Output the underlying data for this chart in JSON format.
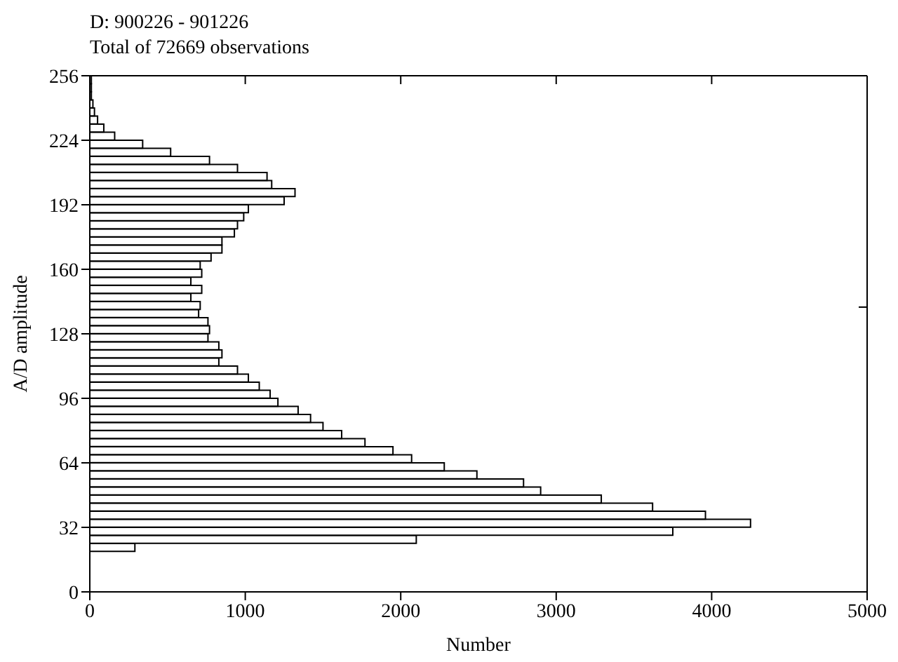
{
  "chart_data": {
    "type": "histogram",
    "orientation": "horizontal",
    "title": "D: 900226 - 901226",
    "subtitle": "Total of 72669 observations",
    "xlabel": "Number",
    "ylabel": "A/D amplitude",
    "bins": [
      20,
      24,
      28,
      32,
      36,
      40,
      44,
      48,
      52,
      56,
      60,
      64,
      68,
      72,
      76,
      80,
      84,
      88,
      92,
      96,
      100,
      104,
      108,
      112,
      116,
      120,
      124,
      128,
      132,
      136,
      140,
      144,
      148,
      152,
      156,
      160,
      164,
      168,
      172,
      176,
      180,
      184,
      188,
      192,
      196,
      200,
      204,
      208,
      212,
      216,
      220,
      224,
      228,
      232,
      236,
      240,
      244,
      248,
      252,
      256
    ],
    "values": [
      290,
      2100,
      3750,
      4250,
      3960,
      3620,
      3290,
      2900,
      2790,
      2490,
      2280,
      2070,
      1950,
      1770,
      1620,
      1500,
      1420,
      1340,
      1210,
      1160,
      1090,
      1020,
      950,
      830,
      850,
      830,
      760,
      770,
      760,
      700,
      710,
      650,
      720,
      650,
      720,
      710,
      780,
      850,
      850,
      930,
      950,
      990,
      1020,
      1250,
      1320,
      1170,
      1140,
      950,
      770,
      520,
      340,
      160,
      90,
      50,
      30,
      20,
      10,
      10,
      10
    ],
    "color": "#ffffff",
    "xlim": [
      0,
      5000
    ],
    "xticks": [
      0,
      1000,
      2000,
      3000,
      4000,
      5000
    ],
    "ylim": [
      0,
      256
    ],
    "yticks": [
      0,
      32,
      64,
      96,
      128,
      160,
      192,
      224,
      256
    ],
    "grid": false,
    "legend": false
  }
}
